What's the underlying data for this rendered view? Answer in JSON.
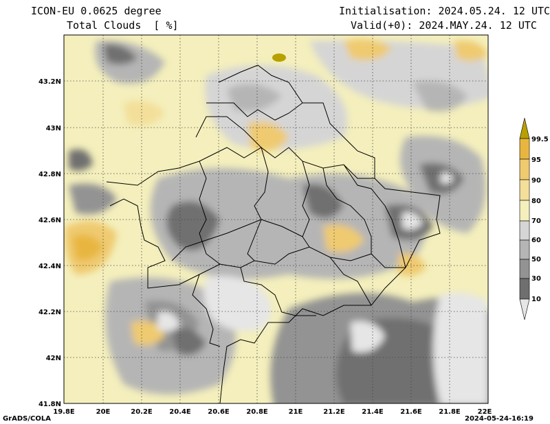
{
  "header": {
    "model": "ICON-EU 0.0625 degree",
    "variable": "Total Clouds  [ %]",
    "init": "Initialisation: 2024.05.24. 12 UTC",
    "valid": "Valid(+0): 2024.MAY.24. 12 UTC"
  },
  "map": {
    "lon_labels": [
      "19.8E",
      "20E",
      "20.2E",
      "20.4E",
      "20.6E",
      "20.8E",
      "21E",
      "21.2E",
      "21.4E",
      "21.6E",
      "21.8E",
      "22E"
    ],
    "lat_labels": [
      "41.8N",
      "42N",
      "42.2N",
      "42.4N",
      "42.6N",
      "42.8N",
      "43N",
      "43.2N"
    ]
  },
  "colorbar": {
    "labels": [
      "99.5",
      "95",
      "90",
      "80",
      "70",
      "60",
      "50",
      "30",
      "10"
    ],
    "colors": [
      "#b7a000",
      "#e8b640",
      "#efca6f",
      "#f3df9a",
      "#f4efbc",
      "#d5d5d5",
      "#b5b5b5",
      "#939393",
      "#6f6f6f",
      "#e6e6e6"
    ]
  },
  "footer": {
    "left": "GrADS/COLA",
    "right": "2024-05-24-16:19"
  }
}
